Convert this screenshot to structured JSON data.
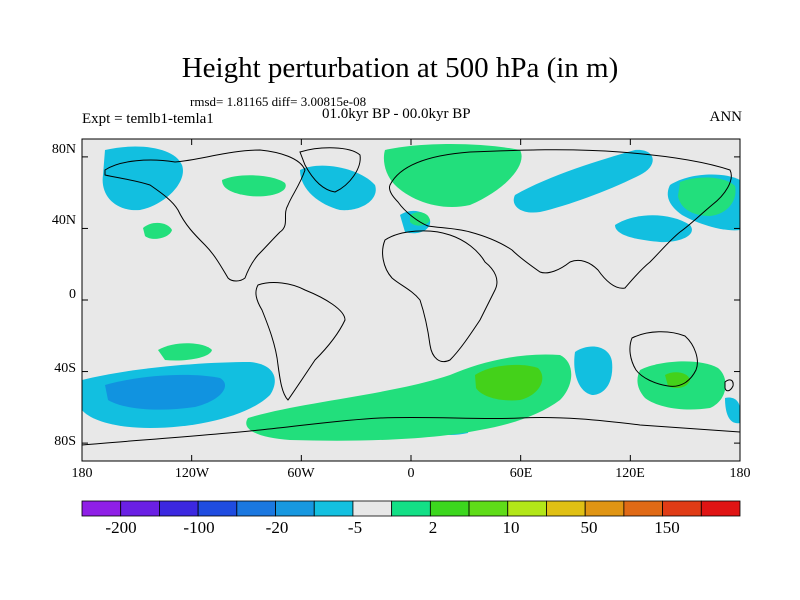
{
  "title": "Height perturbation at 500 hPa (in m)",
  "stats": "rmsd= 1.81165 diff= 3.00815e-08",
  "left_label": "Expt = temlb1-temla1",
  "center_label": "01.0kyr BP - 00.0kyr BP",
  "right_label": "ANN",
  "colors": {
    "background": "#e8e8e8",
    "neg_light": "#12bfe0",
    "neg_mid": "#1193e0",
    "pos_light": "#22df7c",
    "pos_mid": "#44d11a",
    "coast": "#000000"
  },
  "map": {
    "lat_ticks": [
      "80N",
      "40N",
      "0",
      "40S",
      "80S"
    ],
    "lon_ticks": [
      "180",
      "120W",
      "60W",
      "0",
      "60E",
      "120E",
      "180"
    ],
    "lat_range": [
      -90,
      90
    ],
    "lon_range": [
      -180,
      180
    ]
  },
  "colorbar": {
    "colors": [
      "#8f1fe6",
      "#6a20e4",
      "#3c28e0",
      "#1f4ce0",
      "#1b78e0",
      "#1798e0",
      "#13c0e0",
      "#e8e8e8",
      "#13df86",
      "#3cd71e",
      "#5fdc18",
      "#b2e618",
      "#e0c014",
      "#e09514",
      "#e06a16",
      "#e03c16",
      "#e01414"
    ],
    "labels": [
      "-200",
      "-100",
      "-20",
      "-5",
      "2",
      "10",
      "50",
      "150"
    ]
  }
}
